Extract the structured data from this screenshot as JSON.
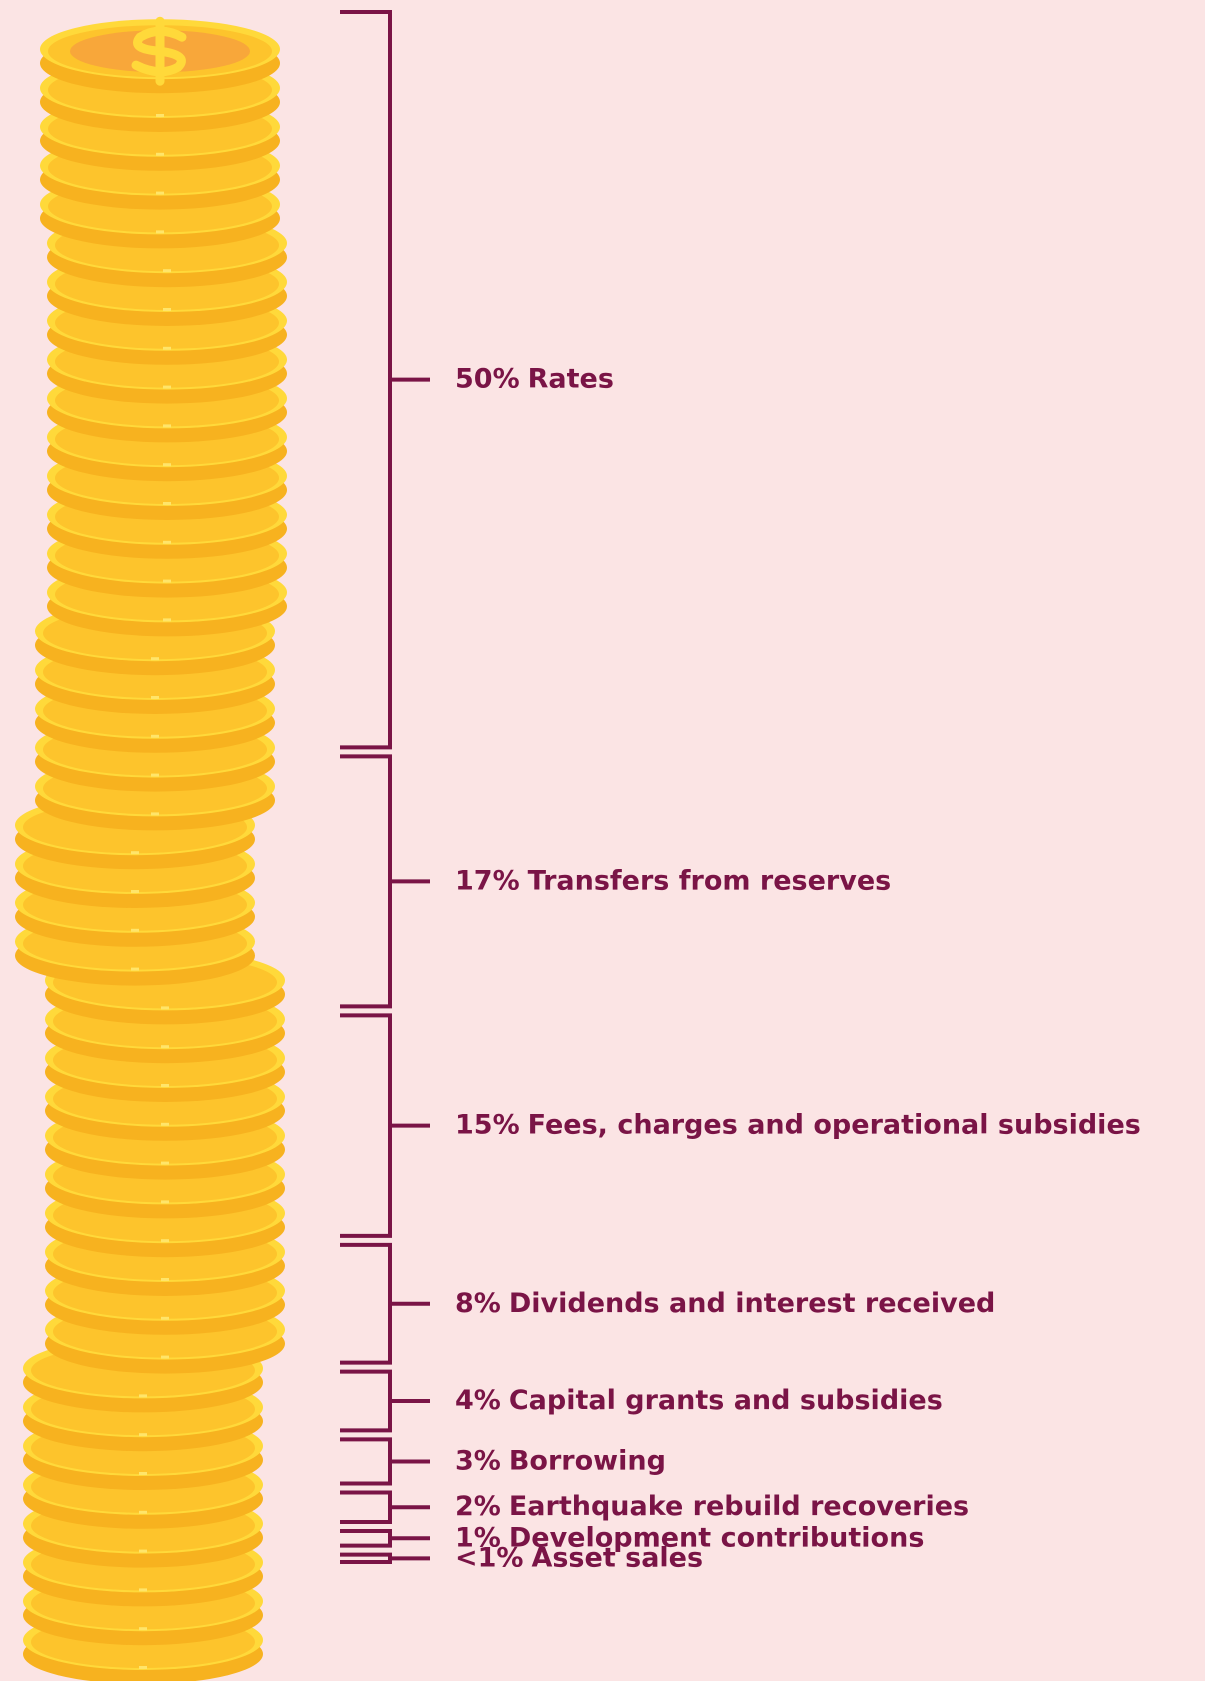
{
  "chart_data": {
    "type": "bracket-stack",
    "categories": [
      "Rates",
      "Transfers from reserves",
      "Fees, charges and operational subsidies",
      "Dividends and interest received",
      "Capital grants and subsidies",
      "Borrowing",
      "Earthquake rebuild recoveries",
      "Development contributions",
      "Asset sales"
    ],
    "values": [
      50,
      17,
      15,
      8,
      4,
      3,
      2,
      1,
      0.5
    ],
    "value_labels": [
      "50%",
      "17%",
      "15%",
      "8%",
      "4%",
      "3%",
      "2%",
      "1%",
      "<1%"
    ],
    "color": "#7a1446"
  }
}
